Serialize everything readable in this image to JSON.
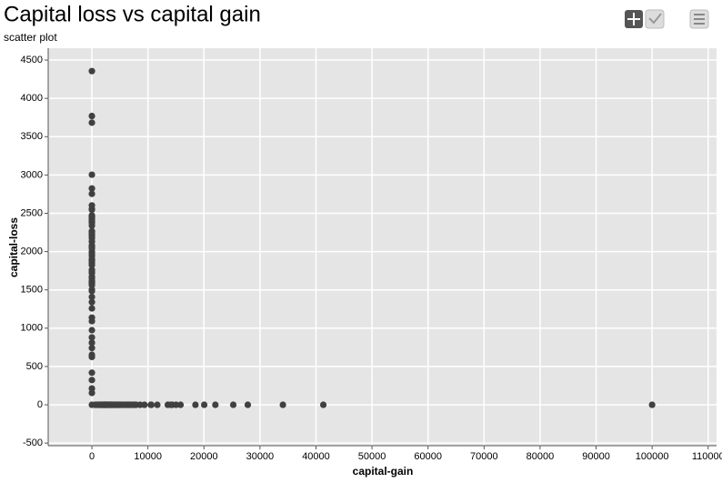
{
  "chart_data": {
    "type": "scatter",
    "title": "Capital loss vs capital gain",
    "subtitle": "scatter plot",
    "x_label": "capital-gain",
    "y_label": "capital-loss",
    "color": "#404040",
    "grid": true,
    "xlim": [
      -7800,
      111500
    ],
    "ylim": [
      -534,
      4655
    ],
    "xticks": [
      0,
      10000,
      20000,
      30000,
      40000,
      50000,
      60000,
      70000,
      80000,
      90000,
      100000,
      110000
    ],
    "yticks": [
      -500,
      0,
      500,
      1000,
      1500,
      2000,
      2500,
      3000,
      3500,
      4000,
      4500
    ],
    "x": [
      0,
      0,
      0,
      0,
      0,
      0,
      0,
      0,
      0,
      0,
      0,
      0,
      0,
      0,
      0,
      0,
      0,
      0,
      0,
      0,
      0,
      0,
      0,
      0,
      0,
      0,
      0,
      0,
      0,
      0,
      0,
      0,
      0,
      0,
      0,
      0,
      0,
      0,
      0,
      0,
      0,
      0,
      0,
      0,
      0,
      0,
      0,
      0,
      0,
      0,
      0,
      0,
      0,
      0,
      0,
      0,
      0,
      0,
      0,
      0,
      594,
      914,
      1055,
      1151,
      1409,
      1471,
      1506,
      1639,
      1797,
      1848,
      2050,
      2105,
      2174,
      2202,
      2290,
      2346,
      2407,
      2463,
      2538,
      2597,
      2653,
      2829,
      2907,
      2964,
      3103,
      3137,
      3273,
      3325,
      3411,
      3464,
      3674,
      3781,
      3818,
      3908,
      4064,
      4101,
      4386,
      4508,
      4650,
      4787,
      4865,
      5013,
      5178,
      5455,
      5721,
      6097,
      6418,
      6497,
      6723,
      6849,
      7298,
      7443,
      7688,
      7896,
      8614,
      9386,
      10520,
      10605,
      11678,
      13550,
      14084,
      14344,
      15024,
      15831,
      18481,
      20051,
      22040,
      25236,
      27828,
      34095,
      41310,
      99999
    ],
    "values": [
      0,
      155,
      213,
      323,
      419,
      625,
      653,
      741,
      810,
      880,
      974,
      1092,
      1138,
      1258,
      1340,
      1408,
      1485,
      1504,
      1564,
      1590,
      1602,
      1617,
      1651,
      1672,
      1719,
      1740,
      1762,
      1825,
      1848,
      1876,
      1887,
      1902,
      1944,
      1977,
      2001,
      2042,
      2057,
      2080,
      2129,
      2174,
      2201,
      2231,
      2258,
      2267,
      2339,
      2377,
      2392,
      2415,
      2444,
      2457,
      2472,
      2547,
      2559,
      2603,
      2754,
      2824,
      3004,
      3683,
      3770,
      4356,
      0,
      0,
      0,
      0,
      0,
      0,
      0,
      0,
      0,
      0,
      0,
      0,
      0,
      0,
      0,
      0,
      0,
      0,
      0,
      0,
      0,
      0,
      0,
      0,
      0,
      0,
      0,
      0,
      0,
      0,
      0,
      0,
      0,
      0,
      0,
      0,
      0,
      0,
      0,
      0,
      0,
      0,
      0,
      0,
      0,
      0,
      0,
      0,
      0,
      0,
      0,
      0,
      0,
      0,
      0,
      0,
      0,
      0,
      0,
      0,
      0,
      0,
      0,
      0,
      0,
      0,
      0,
      0,
      0,
      0,
      0,
      0
    ]
  }
}
